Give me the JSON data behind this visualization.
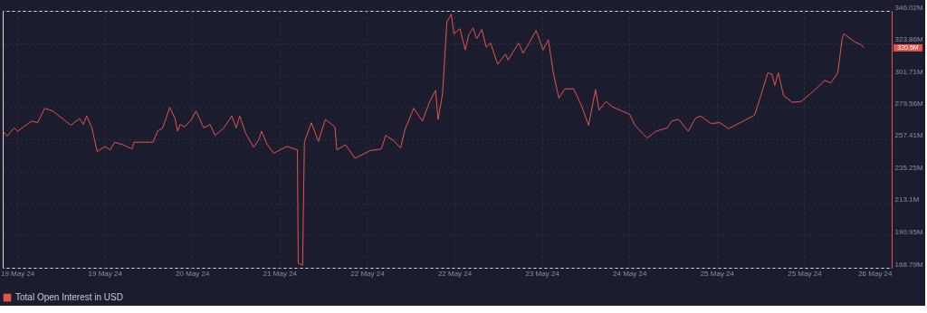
{
  "chart_data": {
    "type": "line",
    "x": [
      "--05-18T21:00",
      "--05-18T21:54",
      "--05-18T23:20",
      "--05-19T00:04",
      "--05-19T02:56",
      "--05-19T04:12",
      "--05-19T05:38",
      "--05-19T07:16",
      "--05-19T11:02",
      "--05-19T12:50",
      "--05-19T13:34",
      "--05-19T14:17",
      "--05-19T15:22",
      "--05-19T16:26",
      "--05-19T18:04",
      "--05-19T19:08",
      "--05-19T20:02",
      "--05-19T21:50",
      "--05-19T23:38",
      "--05-20T00:00",
      "--05-20T03:58",
      "--05-20T04:52",
      "--05-20T05:56",
      "--05-20T07:23",
      "--05-20T08:28",
      "--05-20T09:00",
      "--05-20T09:32",
      "--05-20T10:26",
      "--05-20T11:53",
      "--05-20T12:47",
      "--05-20T14:24",
      "--05-20T15:40",
      "--05-20T16:44",
      "--05-20T18:32",
      "--05-20T20:10",
      "--05-20T21:04",
      "--05-20T21:47",
      "--05-20T23:02",
      "--05-21T00:40",
      "--05-21T01:44",
      "--05-21T02:17",
      "--05-21T03:22",
      "--05-21T04:48",
      "--05-21T07:30",
      "--05-21T09:40",
      "--05-21T09:50",
      "--05-21T10:44",
      "--05-21T11:06",
      "--05-21T12:32",
      "--05-21T13:59",
      "--05-21T15:25",
      "--05-21T17:24",
      "--05-21T17:46",
      "--05-21T19:34",
      "--05-21T21:32",
      "--05-22T00:36",
      "--05-22T02:56",
      "--05-22T03:50",
      "--05-22T05:28",
      "--05-22T06:54",
      "--05-22T07:48",
      "--05-22T09:36",
      "--05-22T11:24",
      "--05-22T12:50",
      "--05-22T14:06",
      "--05-22T14:38",
      "--05-22T15:32",
      "--05-22T16:26",
      "--05-22T17:20",
      "--05-22T17:53",
      "--05-22T19:08",
      "--05-22T20:13",
      "--05-22T20:56",
      "--05-22T21:50",
      "--05-22T22:34",
      "--05-22T23:38",
      "--05-23T00:32",
      "--05-23T01:26",
      "--05-23T02:53",
      "--05-23T04:30",
      "--05-23T05:02",
      "--05-23T07:12",
      "--05-23T08:06",
      "--05-23T09:22",
      "--05-23T10:48",
      "--05-23T12:14",
      "--05-23T13:19",
      "--05-23T14:24",
      "--05-23T15:29",
      "--05-23T16:44",
      "--05-23T18:32",
      "--05-23T20:10",
      "--05-23T21:36",
      "--05-23T23:02",
      "--05-23T23:46",
      "--05-24T01:12",
      "--05-24T02:28",
      "--05-24T04:26",
      "--05-24T06:04",
      "--05-24T07:08",
      "--05-24T09:40",
      "--05-24T11:28",
      "--05-24T13:48",
      "--05-24T14:42",
      "--05-24T16:08",
      "--05-24T18:07",
      "--05-24T19:34",
      "--05-24T20:38",
      "--05-24T22:48",
      "--05-25T00:36",
      "--05-25T02:24",
      "--05-25T05:28",
      "--05-25T07:48",
      "--05-25T09:04",
      "--05-25T10:30",
      "--05-25T11:24",
      "--05-25T11:56",
      "--05-25T12:40",
      "--05-25T13:44",
      "--05-25T15:32",
      "--05-25T17:20",
      "--05-25T19:52",
      "--05-25T22:12",
      "--05-25T23:28",
      "--05-26T00:54",
      "--05-26T01:48",
      "--05-26T02:10",
      "--05-26T03:04",
      "--05-26T04:30",
      "--05-26T05:46",
      "--05-26T06:18"
    ],
    "series": [
      {
        "name": "Total Open Interest in USD",
        "color": "#e5534b",
        "values": [
          263.2,
          259.5,
          265.3,
          263.0,
          270.0,
          268.9,
          278.8,
          277.0,
          267.1,
          271.8,
          267.7,
          273.5,
          265.3,
          249.0,
          252.5,
          250.1,
          255.4,
          253.6,
          250.7,
          255.4,
          255.4,
          263.0,
          265.3,
          279.4,
          271.8,
          263.0,
          267.7,
          265.9,
          271.2,
          277.0,
          265.3,
          267.7,
          260.1,
          265.3,
          273.5,
          265.3,
          273.5,
          261.3,
          251.9,
          257.2,
          263.0,
          254.2,
          247.8,
          252.5,
          250.1,
          171.8,
          170.6,
          255.4,
          268.9,
          256.0,
          271.2,
          265.9,
          250.1,
          253.6,
          244.3,
          249.6,
          250.7,
          260.1,
          256.6,
          251.3,
          264.2,
          278.8,
          270.0,
          282.9,
          291.1,
          271.2,
          288.7,
          338.4,
          343.7,
          330.2,
          333.7,
          319.1,
          329.6,
          334.3,
          326.7,
          333.2,
          320.9,
          323.8,
          309.2,
          316.2,
          312.1,
          323.8,
          316.8,
          323.8,
          332.6,
          319.1,
          326.1,
          302.2,
          285.8,
          292.2,
          292.2,
          280.5,
          267.1,
          291.6,
          277.6,
          283.5,
          279.9,
          277.0,
          274.7,
          267.1,
          258.3,
          263.0,
          265.3,
          270.0,
          271.2,
          263.0,
          271.8,
          273.5,
          268.3,
          268.9,
          264.8,
          270.0,
          274.1,
          287.6,
          303.3,
          302.2,
          294.6,
          303.3,
          287.6,
          282.9,
          283.5,
          290.5,
          298.1,
          296.3,
          303.3,
          326.7,
          330.2,
          327.9,
          324.4,
          322.6,
          320.5
        ]
      }
    ],
    "xlim": [
      "--05-18T21:00",
      "--05-26T12:00"
    ],
    "xticks": [
      {
        "value": "--05-19T00:00",
        "label": "19 May 24"
      },
      {
        "value": "--05-19T18:00",
        "label": "19 May 24"
      },
      {
        "value": "--05-20T12:00",
        "label": "20 May 24"
      },
      {
        "value": "--05-21T06:00",
        "label": "21 May 24"
      },
      {
        "value": "--05-22T00:00",
        "label": "22 May 24"
      },
      {
        "value": "--05-22T18:00",
        "label": "22 May 24"
      },
      {
        "value": "--05-23T12:00",
        "label": "23 May 24"
      },
      {
        "value": "--05-24T06:00",
        "label": "24 May 24"
      },
      {
        "value": "--05-25T00:00",
        "label": "25 May 24"
      },
      {
        "value": "--05-25T18:00",
        "label": "25 May 24"
      },
      {
        "value": "--05-26T12:00",
        "label": "26 May 24"
      }
    ],
    "ylim": [
      168.79,
      346.02
    ],
    "yticks": [
      {
        "value": 168.79,
        "label": "168.79M"
      },
      {
        "value": 190.95,
        "label": "190.95M"
      },
      {
        "value": 213.1,
        "label": "213.1M"
      },
      {
        "value": 235.25,
        "label": "235.25M"
      },
      {
        "value": 257.41,
        "label": "257.41M"
      },
      {
        "value": 279.56,
        "label": "279.56M"
      },
      {
        "value": 301.71,
        "label": "301.71M"
      },
      {
        "value": 323.86,
        "label": "323.86M"
      },
      {
        "value": 346.02,
        "label": "346.02M"
      }
    ],
    "annotations": [
      "320.5M"
    ],
    "grid": true,
    "legend": "bottom",
    "marker": "none",
    "line_style": "solid"
  }
}
